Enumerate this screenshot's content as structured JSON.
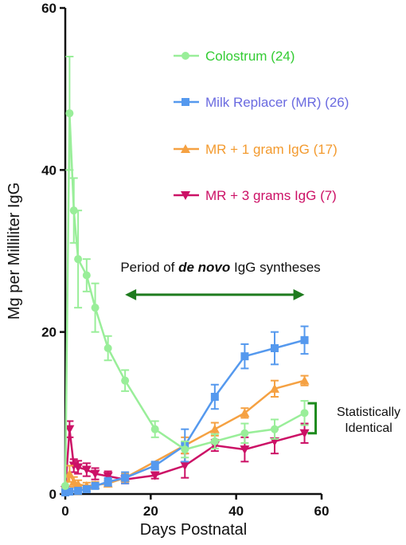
{
  "chart_data": {
    "type": "line",
    "xlabel": "Days Postnatal",
    "ylabel": "Mg per Milliliter IgG",
    "xlim": [
      0,
      60
    ],
    "ylim": [
      0,
      60
    ],
    "x_ticks": [
      "0",
      "20",
      "40",
      "60"
    ],
    "y_ticks": [
      "0",
      "20",
      "40",
      "60"
    ],
    "grid": false,
    "legend_position": "top-right",
    "series": [
      {
        "name": "Colostrum (24)",
        "color": "#99EE99",
        "label_color": "#33CC33",
        "marker": "circle",
        "points": [
          {
            "x": 0,
            "y": 1,
            "err": 0
          },
          {
            "x": 1,
            "y": 47,
            "err": 7
          },
          {
            "x": 2,
            "y": 35,
            "err": 4
          },
          {
            "x": 3,
            "y": 29,
            "err": 6
          },
          {
            "x": 5,
            "y": 27,
            "err": 2
          },
          {
            "x": 7,
            "y": 23,
            "err": 3
          },
          {
            "x": 10,
            "y": 18,
            "err": 1.5
          },
          {
            "x": 14,
            "y": 14,
            "err": 1.3
          },
          {
            "x": 21,
            "y": 8,
            "err": 1
          },
          {
            "x": 28,
            "y": 5.5,
            "err": 1
          },
          {
            "x": 35,
            "y": 6.5,
            "err": 0.9
          },
          {
            "x": 42,
            "y": 7.5,
            "err": 1.2
          },
          {
            "x": 49,
            "y": 8,
            "err": 1.2
          },
          {
            "x": 56,
            "y": 10,
            "err": 1.5
          }
        ]
      },
      {
        "name": "Milk Replacer (MR) (26)",
        "color": "#5599EE",
        "label_color": "#6A6AE0",
        "marker": "square",
        "points": [
          {
            "x": 0,
            "y": 0.2,
            "err": 0
          },
          {
            "x": 1,
            "y": 0.3,
            "err": 0
          },
          {
            "x": 3,
            "y": 0.4,
            "err": 0.2
          },
          {
            "x": 5,
            "y": 0.6,
            "err": 0.3
          },
          {
            "x": 7,
            "y": 1,
            "err": 0.3
          },
          {
            "x": 10,
            "y": 1.5,
            "err": 0.5
          },
          {
            "x": 14,
            "y": 2,
            "err": 0.7
          },
          {
            "x": 21,
            "y": 3.5,
            "err": 0.5
          },
          {
            "x": 28,
            "y": 6,
            "err": 2
          },
          {
            "x": 35,
            "y": 12,
            "err": 1.5
          },
          {
            "x": 42,
            "y": 17,
            "err": 1.5
          },
          {
            "x": 49,
            "y": 18,
            "err": 2
          },
          {
            "x": 56,
            "y": 19,
            "err": 1.7
          }
        ]
      },
      {
        "name": "MR + 1 gram IgG (17)",
        "color": "#F5A142",
        "label_color": "#F39A2E",
        "marker": "triangle-up",
        "points": [
          {
            "x": 0,
            "y": 0.5,
            "err": 0
          },
          {
            "x": 1,
            "y": 2.5,
            "err": 1
          },
          {
            "x": 2,
            "y": 1.5,
            "err": 0.6
          },
          {
            "x": 3,
            "y": 1.2,
            "err": 0.5
          },
          {
            "x": 5,
            "y": 1,
            "err": 0.4
          },
          {
            "x": 7,
            "y": 1.1,
            "err": 0.4
          },
          {
            "x": 10,
            "y": 1.3,
            "err": 0.4
          },
          {
            "x": 14,
            "y": 2,
            "err": 0.5
          },
          {
            "x": 28,
            "y": 6,
            "err": 1
          },
          {
            "x": 35,
            "y": 8,
            "err": 0.8
          },
          {
            "x": 42,
            "y": 10,
            "err": 0.6
          },
          {
            "x": 49,
            "y": 13,
            "err": 1
          },
          {
            "x": 56,
            "y": 14,
            "err": 0.6
          }
        ]
      },
      {
        "name": "MR + 3 grams IgG (7)",
        "color": "#CC1166",
        "label_color": "#CC1166",
        "marker": "triangle-down",
        "points": [
          {
            "x": 0,
            "y": 0.5,
            "err": 0
          },
          {
            "x": 1,
            "y": 8,
            "err": 1
          },
          {
            "x": 2,
            "y": 3.5,
            "err": 0.8
          },
          {
            "x": 3,
            "y": 3.3,
            "err": 0.8
          },
          {
            "x": 5,
            "y": 3,
            "err": 0.8
          },
          {
            "x": 7,
            "y": 2.5,
            "err": 0.7
          },
          {
            "x": 10,
            "y": 2.2,
            "err": 0.6
          },
          {
            "x": 14,
            "y": 1.8,
            "err": 0.5
          },
          {
            "x": 21,
            "y": 2.3,
            "err": 0.4
          },
          {
            "x": 28,
            "y": 3.5,
            "err": 1.5
          },
          {
            "x": 35,
            "y": 6,
            "err": 0.7
          },
          {
            "x": 42,
            "y": 5.5,
            "err": 1.5
          },
          {
            "x": 49,
            "y": 6.5,
            "err": 1.5
          },
          {
            "x": 56,
            "y": 7.5,
            "err": 1.2
          }
        ]
      }
    ],
    "annotations": {
      "period_text_before": "Period of ",
      "period_text_emph": "de novo",
      "period_text_after": " IgG syntheses",
      "period_range": [
        14,
        56
      ],
      "period_y": 24.6,
      "period_color": "#1E7B1E",
      "bracket_range": [
        7.5,
        11.2
      ],
      "bracket_x": 56,
      "bracket_color": "#1E8B1E",
      "bracket_label_line1": "Statistically",
      "bracket_label_line2": "Identical"
    }
  }
}
